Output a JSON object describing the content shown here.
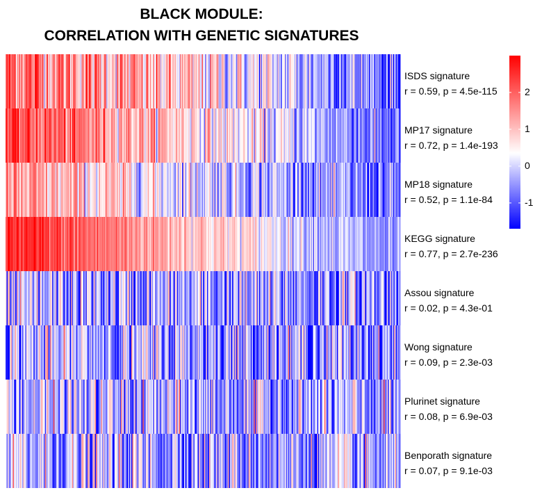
{
  "title": {
    "line1": "BLACK MODULE:",
    "line2": "CORRELATION WITH GENETIC SIGNATURES"
  },
  "chart_data": {
    "type": "heatmap",
    "title": "BLACK MODULE: CORRELATION WITH GENETIC SIGNATURES",
    "n_columns": 380,
    "rows": [
      {
        "name": "ISDS signature",
        "stat": "r = 0.59, p = 4.5e-115",
        "r": 0.59,
        "p": "4.5e-115",
        "trend": 2.9,
        "base": 0.6,
        "noise": 1.35
      },
      {
        "name": "MP17 signature",
        "stat": "r = 0.72, p = 1.4e-193",
        "r": 0.72,
        "p": "1.4e-193",
        "trend": 3.2,
        "base": 0.7,
        "noise": 1.0
      },
      {
        "name": "MP18 signature",
        "stat": "r = 0.52, p = 1.1e-84",
        "r": 0.52,
        "p": "1.1e-84",
        "trend": 2.2,
        "base": 0.15,
        "noise": 1.1
      },
      {
        "name": "KEGG signature",
        "stat": "r = 0.77, p = 2.7e-236",
        "r": 0.77,
        "p": "2.7e-236",
        "trend": 3.3,
        "base": 0.95,
        "noise": 0.75
      },
      {
        "name": "Assou signature",
        "stat": "r = 0.02, p = 4.3e-01",
        "r": 0.02,
        "p": "4.3e-01",
        "trend": 0.1,
        "base": -0.45,
        "noise": 1.55
      },
      {
        "name": "Wong signature",
        "stat": "r = 0.09, p = 2.3e-03",
        "r": 0.09,
        "p": "2.3e-03",
        "trend": 0.3,
        "base": -0.35,
        "noise": 1.5
      },
      {
        "name": "Plurinet signature",
        "stat": "r = 0.08, p = 6.9e-03",
        "r": 0.08,
        "p": "6.9e-03",
        "trend": 0.3,
        "base": -0.35,
        "noise": 1.5
      },
      {
        "name": "Benporath signature",
        "stat": "r = 0.07, p = 9.1e-03",
        "r": 0.07,
        "p": "9.1e-03",
        "trend": 0.3,
        "base": -0.35,
        "noise": 1.5
      }
    ],
    "colorscale": {
      "min": -1.7,
      "mid": 0.35,
      "max": 3.0,
      "low_color": "#0000ff",
      "mid_color": "#ffffff",
      "high_color": "#ff0000"
    },
    "legend": {
      "ticks": [
        {
          "label": "2",
          "value": 2
        },
        {
          "label": "1",
          "value": 1
        },
        {
          "label": "0",
          "value": 0
        },
        {
          "label": "-1",
          "value": -1
        }
      ],
      "placement": "top-right"
    }
  }
}
